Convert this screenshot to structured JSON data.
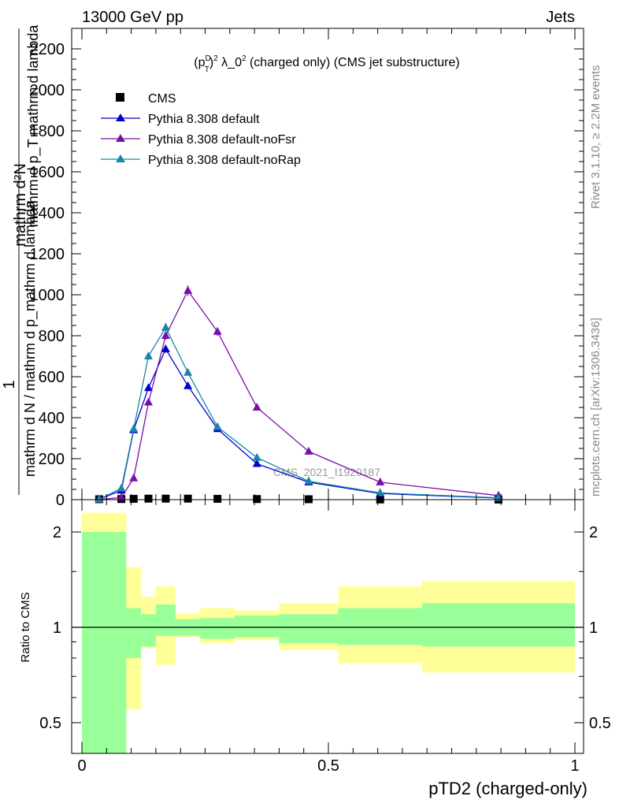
{
  "header": {
    "left": "13000 GeV pp",
    "right": "Jets"
  },
  "side_labels": {
    "rivet": "Rivet 3.1.10, ≥ 2.2M events",
    "mcplots": "mcplots.cern.ch [arXiv:1306.3436]"
  },
  "colors": {
    "cms": "#000000",
    "default": "#0000cc",
    "noFsr": "#7a0fa8",
    "noRap": "#1a86a8",
    "band_inner": "#99ff99",
    "band_outer": "#ffff99"
  },
  "chart_data": [
    {
      "type": "line",
      "title_parts": {
        "p": "(p",
        "sup1": "D",
        "sub1": "T",
        "close": ")",
        "sup2": "2",
        "mid": " λ_0",
        "sup3": "2",
        "tail": " (charged only) (CMS jet substructure)"
      },
      "ylabel_top": "1",
      "ylabel_bottom": "mathrm d N / mathrm d p_mathrm d lambda",
      "ylabel_line": "mathrm d²N",
      "ylabel_line2": "mathrm d p_T mathrm d lambda",
      "watermark": "CMS_2021_I1920187",
      "xlim": [
        0,
        1
      ],
      "ylim": [
        0,
        2300
      ],
      "yticks": [
        "0",
        "200",
        "400",
        "600",
        "800",
        "1000",
        "1200",
        "1400",
        "1600",
        "1800",
        "2000",
        "2200"
      ],
      "ytick_values": [
        0,
        200,
        400,
        600,
        800,
        1000,
        1200,
        1400,
        1600,
        1800,
        2000,
        2200
      ],
      "legend": [
        "CMS",
        "Pythia 8.308 default",
        "Pythia 8.308 default-noFsr",
        "Pythia 8.308 default-noRap"
      ],
      "x": [
        0.035,
        0.08,
        0.105,
        0.135,
        0.17,
        0.215,
        0.275,
        0.355,
        0.46,
        0.605,
        0.845
      ],
      "series": [
        {
          "name": "CMS",
          "values": [
            2,
            3,
            4,
            5,
            5,
            5,
            4,
            3,
            2,
            1,
            0.5
          ]
        },
        {
          "name": "Pythia 8.308 default",
          "values": [
            2,
            45,
            340,
            545,
            735,
            555,
            345,
            175,
            85,
            30,
            8
          ]
        },
        {
          "name": "Pythia 8.308 default-noFsr",
          "values": [
            1,
            10,
            105,
            475,
            800,
            1020,
            820,
            450,
            235,
            85,
            20
          ]
        },
        {
          "name": "Pythia 8.308 default-noRap",
          "values": [
            2,
            55,
            345,
            700,
            840,
            620,
            355,
            205,
            90,
            33,
            9
          ]
        }
      ]
    },
    {
      "type": "area",
      "ylabel": "Ratio to CMS",
      "xlabel": "pTD2 (charged-only)",
      "xlim": [
        0,
        1
      ],
      "ylim": [
        0.35,
        2.3
      ],
      "yticks": [
        "0.5",
        "1",
        "2"
      ],
      "ytick_values": [
        0.5,
        1,
        2
      ],
      "xticks": [
        "0",
        "0.5",
        "1"
      ],
      "xtick_values": [
        0,
        0.5,
        1
      ],
      "bins": [
        0,
        0.07,
        0.09,
        0.12,
        0.15,
        0.19,
        0.24,
        0.31,
        0.4,
        0.52,
        0.69,
        1.0
      ],
      "inner_band": {
        "lo": [
          0.3,
          0.3,
          0.8,
          0.87,
          0.94,
          0.94,
          0.92,
          0.93,
          0.89,
          0.88,
          0.87
        ],
        "hi": [
          2.0,
          2.0,
          1.15,
          1.1,
          1.18,
          1.06,
          1.07,
          1.09,
          1.1,
          1.15,
          1.19
        ]
      },
      "outer_band": {
        "lo": [
          0.3,
          0.3,
          0.55,
          0.86,
          0.76,
          0.93,
          0.89,
          0.91,
          0.85,
          0.77,
          0.72
        ],
        "hi": [
          2.3,
          2.3,
          1.55,
          1.25,
          1.35,
          1.11,
          1.15,
          1.13,
          1.19,
          1.35,
          1.4
        ]
      }
    }
  ]
}
